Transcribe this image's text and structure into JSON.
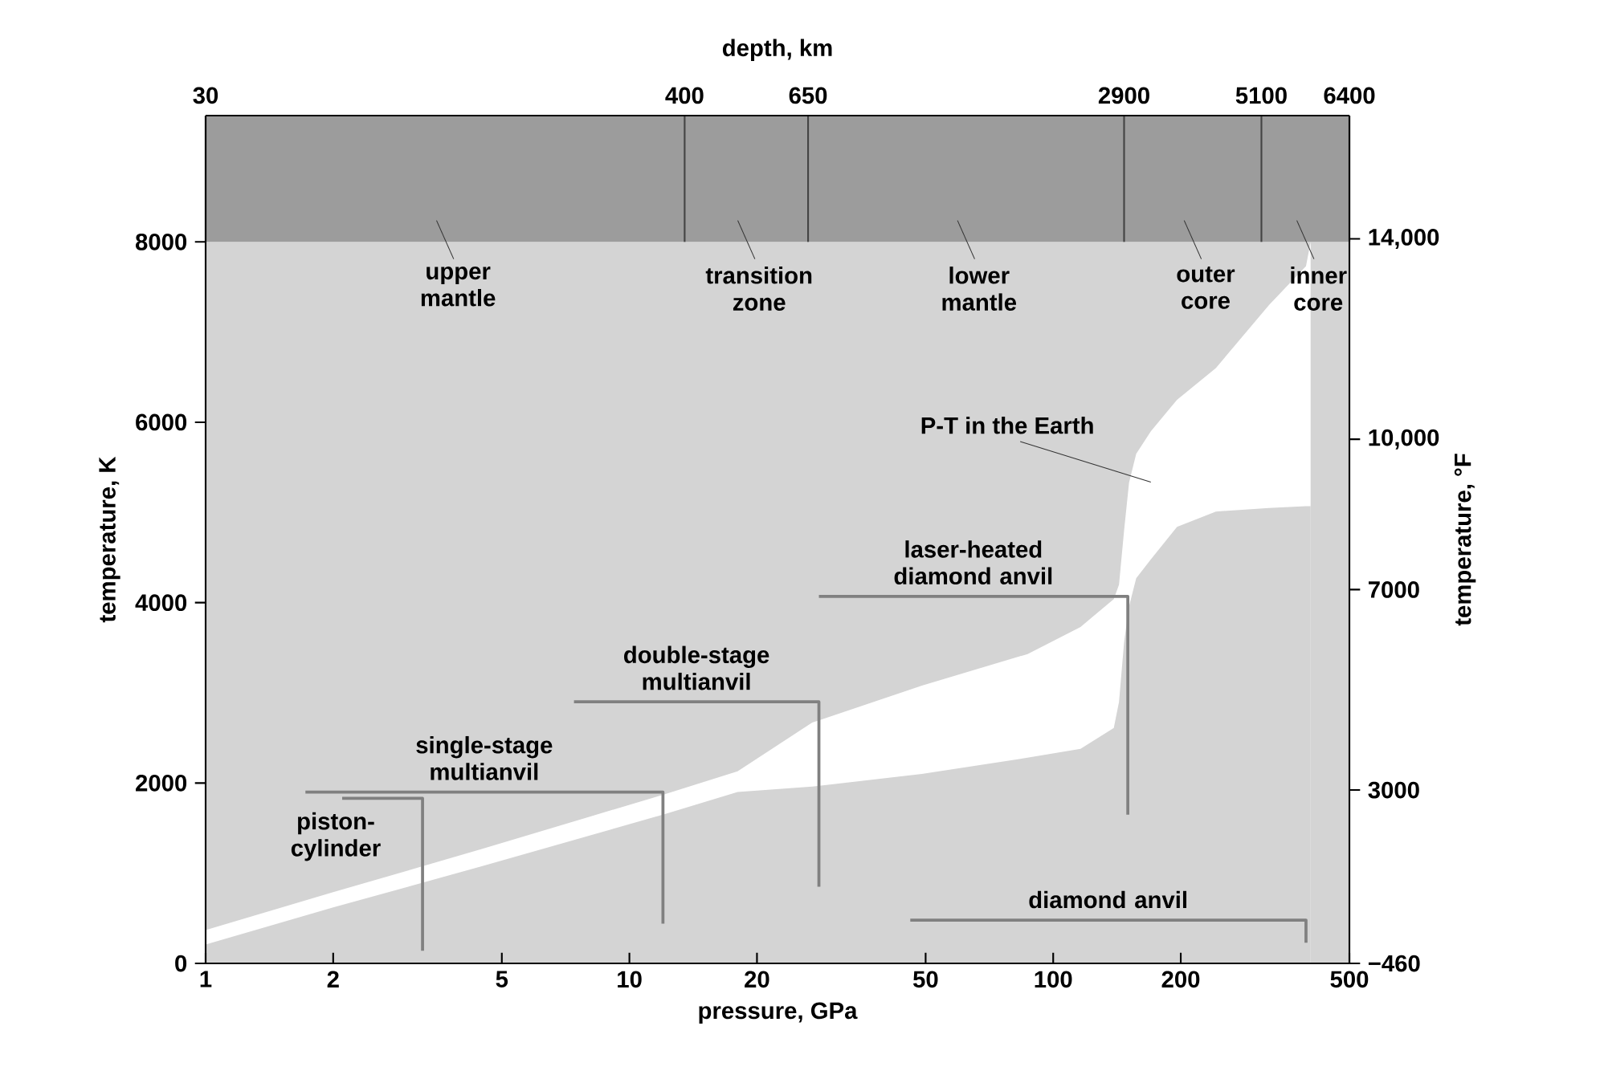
{
  "chart_data": {
    "type": "line",
    "title": "depth, km",
    "xlabel": "pressure, GPa",
    "ylabel": "temperature, K",
    "y2label": "temperature, °F",
    "log": "x",
    "xlim": [
      1,
      500
    ],
    "xticks": [
      1,
      2,
      5,
      10,
      20,
      50,
      100,
      200,
      500
    ],
    "ylim": [
      0,
      9400
    ],
    "yticks": [
      0,
      2000,
      4000,
      6000,
      8000
    ],
    "y2lim": [
      -460,
      16460
    ],
    "y2ticks": [
      {
        "value": -460,
        "label": "−460"
      },
      3000,
      7000,
      {
        "value": 10000,
        "label": "10,000"
      },
      {
        "value": 14000,
        "label": "14,000"
      }
    ],
    "bands": [
      {
        "axis": "y",
        "from": 0,
        "to": 8000,
        "color": "#d4d4d4"
      },
      {
        "axis": "y",
        "from": 8000,
        "to": 9400,
        "color": "#9c9c9c"
      }
    ],
    "ref_lines": [
      {
        "axis": "x",
        "value": 1,
        "color": "#444444"
      },
      {
        "axis": "x",
        "value": 13.5,
        "color": "#444444"
      },
      {
        "axis": "x",
        "value": 26.4,
        "color": "#444444"
      },
      {
        "axis": "x",
        "value": 147,
        "color": "#444444"
      },
      {
        "axis": "x",
        "value": 310,
        "color": "#444444"
      },
      {
        "axis": "x",
        "value": 500,
        "color": "#444444"
      }
    ],
    "series": [
      {
        "type": "area",
        "name": "P-T in the Earth",
        "color": "#ffffff",
        "x": [
          1,
          2,
          4.5,
          12,
          18,
          27,
          49,
          87,
          116,
          139,
          143,
          147,
          151,
          157,
          170,
          196,
          242,
          323,
          395,
          405
        ],
        "values": [
          370,
          790,
          1270,
          1870,
          2130,
          2670,
          3080,
          3430,
          3730,
          4040,
          4200,
          4800,
          5330,
          5650,
          5900,
          6250,
          6600,
          7300,
          7730,
          8000
        ]
      },
      {
        "type": "area",
        "color": "#d4d4d4",
        "x": [
          1,
          2,
          4.5,
          12,
          18,
          27,
          49,
          87,
          116,
          139,
          143,
          147,
          151,
          157,
          170,
          196,
          242,
          323,
          395,
          405
        ],
        "values": [
          210,
          620,
          1080,
          1650,
          1900,
          1960,
          2100,
          2280,
          2380,
          2610,
          2900,
          3560,
          3960,
          4270,
          4480,
          4840,
          5010,
          5050,
          5070,
          5070
        ]
      },
      {
        "name": "piston-cylinder",
        "color": "#808080",
        "x": [
          2.1,
          3.25,
          3.25
        ],
        "values": [
          1830,
          1830,
          140
        ]
      },
      {
        "name": "single-stage multianvil",
        "color": "#808080",
        "x": [
          1.72,
          12,
          12
        ],
        "values": [
          1900,
          1900,
          440
        ]
      },
      {
        "name": "double-stage multianvil",
        "color": "#808080",
        "x": [
          7.4,
          28,
          28
        ],
        "values": [
          2900,
          2900,
          850
        ]
      },
      {
        "name": "laser-heated diamond anvil",
        "color": "#808080",
        "x": [
          28,
          150,
          150
        ],
        "values": [
          4070,
          4070,
          1650
        ]
      },
      {
        "name": "diamond anvil",
        "color": "#808080",
        "x": [
          46,
          395,
          395
        ],
        "values": [
          480,
          480,
          230
        ]
      }
    ],
    "annotations": [
      {
        "text": "30",
        "x": 1,
        "y": 9400
      },
      {
        "text": "400",
        "x": 13.5,
        "y": 9400
      },
      {
        "text": "650",
        "x": 26.4,
        "y": 9400
      },
      {
        "text": "2900",
        "x": 147,
        "y": 9400
      },
      {
        "text": "5100",
        "x": 310,
        "y": 9400
      },
      {
        "text": "6400",
        "x": 500,
        "y": 9400
      },
      "upper mantle",
      "transition zone",
      "lower mantle",
      "outer core",
      "inner core"
    ]
  }
}
